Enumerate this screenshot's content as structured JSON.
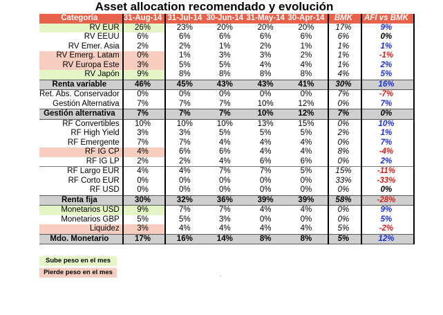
{
  "title": "Asset allocation recomendado y evolución",
  "columns": [
    "Categoría",
    "31-Aug-14",
    "31-Jul-14",
    "30-Jun-14",
    "31-May-14",
    "30-Apr-14",
    "BMK",
    "AFI vs BMK"
  ],
  "rows": [
    {
      "cat": "RV EUR",
      "v": [
        "26%",
        "23%",
        "20%",
        "20%",
        "20%"
      ],
      "bmk": "17%",
      "diff": "9%",
      "kind": "up",
      "sign": "pos"
    },
    {
      "cat": "RV EEUU",
      "v": [
        "6%",
        "6%",
        "6%",
        "6%",
        "6%"
      ],
      "bmk": "6%",
      "diff": "0%",
      "kind": "",
      "sign": "zero"
    },
    {
      "cat": "RV Emer. Asia",
      "v": [
        "2%",
        "2%",
        "1%",
        "2%",
        "1%"
      ],
      "bmk": "1%",
      "diff": "1%",
      "kind": "",
      "sign": "pos"
    },
    {
      "cat": "RV Emerg. Latam",
      "v": [
        "0%",
        "1%",
        "3%",
        "3%",
        "2%"
      ],
      "bmk": "1%",
      "diff": "-1%",
      "kind": "down",
      "sign": "neg"
    },
    {
      "cat": "RV Europa Este",
      "v": [
        "3%",
        "5%",
        "5%",
        "4%",
        "4%"
      ],
      "bmk": "1%",
      "diff": "2%",
      "kind": "down",
      "sign": "pos"
    },
    {
      "cat": "RV Japón",
      "v": [
        "9%",
        "8%",
        "8%",
        "8%",
        "8%"
      ],
      "bmk": "4%",
      "diff": "5%",
      "kind": "up",
      "sign": "pos"
    },
    {
      "cat": "Renta variable",
      "v": [
        "46%",
        "45%",
        "43%",
        "43%",
        "41%"
      ],
      "bmk": "30%",
      "diff": "16%",
      "kind": "total",
      "sign": "pos"
    },
    {
      "cat": "Ret. Abs. Conservador",
      "v": [
        "0%",
        "0%",
        "0%",
        "0%",
        "0%"
      ],
      "bmk": "7%",
      "diff": "-7%",
      "kind": "",
      "sign": "neg"
    },
    {
      "cat": "Gestión Alternativa",
      "v": [
        "7%",
        "7%",
        "7%",
        "10%",
        "12%"
      ],
      "bmk": "0%",
      "diff": "7%",
      "kind": "",
      "sign": "pos"
    },
    {
      "cat": "Gestión alternativa",
      "v": [
        "7%",
        "7%",
        "7%",
        "10%",
        "12%"
      ],
      "bmk": "7%",
      "diff": "0%",
      "kind": "total",
      "sign": "zero"
    },
    {
      "cat": "RF Convertibles",
      "v": [
        "10%",
        "10%",
        "10%",
        "13%",
        "15%"
      ],
      "bmk": "0%",
      "diff": "10%",
      "kind": "",
      "sign": "pos"
    },
    {
      "cat": "RF High Yield",
      "v": [
        "3%",
        "3%",
        "5%",
        "5%",
        "5%"
      ],
      "bmk": "2%",
      "diff": "1%",
      "kind": "",
      "sign": "pos"
    },
    {
      "cat": "RF Emergente",
      "v": [
        "7%",
        "7%",
        "4%",
        "4%",
        "4%"
      ],
      "bmk": "0%",
      "diff": "7%",
      "kind": "",
      "sign": "pos"
    },
    {
      "cat": "RF IG CP",
      "v": [
        "4%",
        "6%",
        "6%",
        "4%",
        "4%"
      ],
      "bmk": "8%",
      "diff": "-4%",
      "kind": "down",
      "sign": "neg"
    },
    {
      "cat": "RF IG LP",
      "v": [
        "2%",
        "2%",
        "4%",
        "6%",
        "6%"
      ],
      "bmk": "0%",
      "diff": "2%",
      "kind": "",
      "sign": "pos"
    },
    {
      "cat": "RF Largo EUR",
      "v": [
        "4%",
        "4%",
        "7%",
        "7%",
        "5%"
      ],
      "bmk": "15%",
      "diff": "-11%",
      "kind": "gap",
      "sign": "neg"
    },
    {
      "cat": "RF Corto EUR",
      "v": [
        "0%",
        "0%",
        "0%",
        "0%",
        "0%"
      ],
      "bmk": "33%",
      "diff": "-33%",
      "kind": "",
      "sign": "neg"
    },
    {
      "cat": "RF USD",
      "v": [
        "0%",
        "0%",
        "0%",
        "0%",
        "0%"
      ],
      "bmk": "0%",
      "diff": "0%",
      "kind": "",
      "sign": "zero"
    },
    {
      "cat": "Renta fija",
      "v": [
        "30%",
        "32%",
        "36%",
        "39%",
        "39%"
      ],
      "bmk": "58%",
      "diff": "-28%",
      "kind": "total",
      "sign": "neg"
    },
    {
      "cat": "Monetarios USD",
      "v": [
        "9%",
        "7%",
        "7%",
        "4%",
        "4%"
      ],
      "bmk": "0%",
      "diff": "9%",
      "kind": "up",
      "sign": "pos"
    },
    {
      "cat": "Monetarios GBP",
      "v": [
        "5%",
        "5%",
        "3%",
        "0%",
        "0%"
      ],
      "bmk": "0%",
      "diff": "5%",
      "kind": "",
      "sign": "pos"
    },
    {
      "cat": "Liquidez",
      "v": [
        "3%",
        "4%",
        "4%",
        "4%",
        "4%"
      ],
      "bmk": "5%",
      "diff": "-2%",
      "kind": "down",
      "sign": "neg"
    },
    {
      "cat": "Mdo. Monetario",
      "v": [
        "17%",
        "16%",
        "14%",
        "8%",
        "8%"
      ],
      "bmk": "5%",
      "diff": "12%",
      "kind": "total",
      "sign": "pos"
    }
  ],
  "legend": {
    "up": "Sube peso en el mes",
    "down": "Pierde peso en el mes"
  },
  "colors": {
    "header": "#e8624b",
    "up": "#e6f5c6",
    "down": "#f6cdbf",
    "total": "#cfcfcf",
    "positive": "#1b2fd1",
    "negative": "#d0241c"
  }
}
